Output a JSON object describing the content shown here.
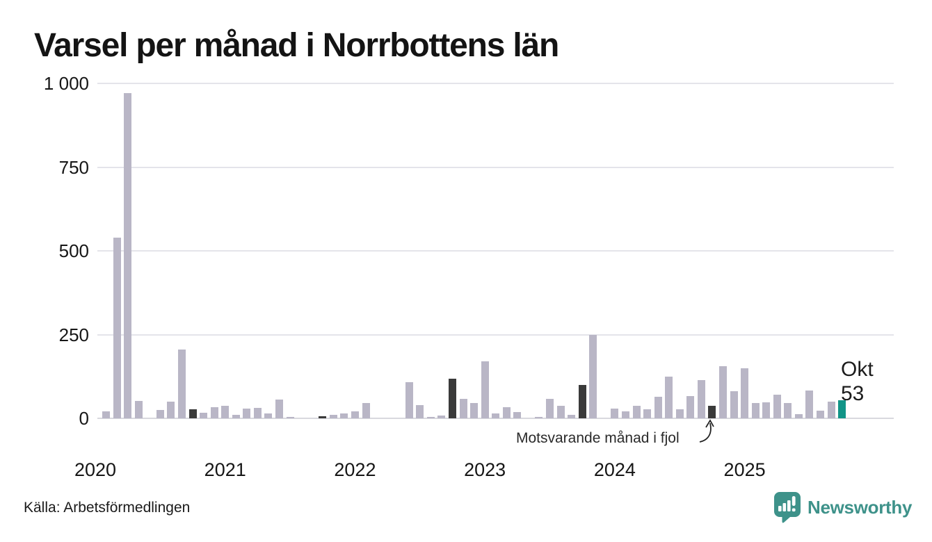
{
  "title": "Varsel per månad i Norrbottens län",
  "footer": {
    "source": "Källa: Arbetsförmedlingen",
    "brand": "Newsworthy"
  },
  "chart_data": {
    "type": "bar",
    "title": "Varsel per månad i Norrbottens län",
    "x_years": [
      "2020",
      "2021",
      "2022",
      "2023",
      "2024",
      "2025"
    ],
    "months": [
      "2020-01",
      "2020-02",
      "2020-03",
      "2020-04",
      "2020-05",
      "2020-06",
      "2020-07",
      "2020-08",
      "2020-09",
      "2020-10",
      "2020-11",
      "2020-12",
      "2021-01",
      "2021-02",
      "2021-03",
      "2021-04",
      "2021-05",
      "2021-06",
      "2021-07",
      "2021-08",
      "2021-09",
      "2021-10",
      "2021-11",
      "2021-12",
      "2022-01",
      "2022-02",
      "2022-03",
      "2022-04",
      "2022-05",
      "2022-06",
      "2022-07",
      "2022-08",
      "2022-09",
      "2022-10",
      "2022-11",
      "2022-12",
      "2023-01",
      "2023-02",
      "2023-03",
      "2023-04",
      "2023-05",
      "2023-06",
      "2023-07",
      "2023-08",
      "2023-09",
      "2023-10",
      "2023-11",
      "2023-12",
      "2024-01",
      "2024-02",
      "2024-03",
      "2024-04",
      "2024-05",
      "2024-06",
      "2024-07",
      "2024-08",
      "2024-09",
      "2024-10",
      "2024-11",
      "2024-12",
      "2025-01",
      "2025-02",
      "2025-03",
      "2025-04",
      "2025-05",
      "2025-06",
      "2025-07",
      "2025-08",
      "2025-09",
      "2025-10"
    ],
    "values": [
      0,
      20,
      540,
      970,
      52,
      0,
      25,
      50,
      205,
      28,
      16,
      33,
      37,
      10,
      30,
      31,
      15,
      57,
      4,
      0,
      0,
      6,
      11,
      15,
      20,
      45,
      0,
      0,
      0,
      108,
      40,
      4,
      8,
      118,
      58,
      45,
      170,
      14,
      33,
      18,
      0,
      4,
      58,
      38,
      11,
      100,
      250,
      0,
      30,
      21,
      37,
      28,
      64,
      125,
      27,
      67,
      115,
      38,
      155,
      80,
      150,
      45,
      48,
      70,
      46,
      12,
      82,
      22,
      50,
      53
    ],
    "dark_month_indexes": [
      9,
      21,
      33,
      45,
      57
    ],
    "highlight_index": 69,
    "highlight_label": {
      "line1": "Okt",
      "line2": "53"
    },
    "annotation": "Motsvarande månad i fjol",
    "ylim": [
      0,
      1000
    ],
    "yticks": [
      0,
      250,
      500,
      750,
      1000
    ],
    "ytick_labels": [
      "0",
      "250",
      "500",
      "750",
      "1 000"
    ],
    "grid": true,
    "colors": {
      "bar": "#b9b6c6",
      "dark": "#3a3a3a",
      "highlight": "#119487",
      "grid": "#e4e4ea",
      "axis": "#d8d8de",
      "logo": "#3e928a"
    }
  }
}
